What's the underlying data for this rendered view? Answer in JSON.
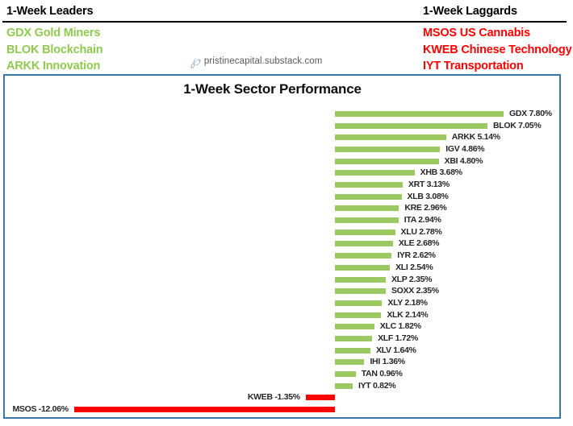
{
  "header": {
    "leaders": {
      "title": "1-Week Leaders",
      "color": "#8fc94f",
      "items": [
        "GDX Gold Miners",
        "BLOK Blockchain",
        "ARKK Innovation"
      ]
    },
    "laggards": {
      "title": "1-Week Laggards",
      "color": "#ff0000",
      "items": [
        "MSOS US Cannabis",
        "KWEB Chinese Technology",
        "IYT Transportation"
      ]
    }
  },
  "watermark": {
    "icon": "script-p-logo",
    "icon_glyph": "℘",
    "text": "pristinecapital.substack.com"
  },
  "chart_data": {
    "type": "bar",
    "orientation": "horizontal",
    "title": "1-Week Sector Performance",
    "categories": [
      "GDX",
      "BLOK",
      "ARKK",
      "IGV",
      "XBI",
      "XHB",
      "XRT",
      "XLB",
      "KRE",
      "ITA",
      "XLU",
      "XLE",
      "IYR",
      "XLI",
      "XLP",
      "SOXX",
      "XLY",
      "XLK",
      "XLC",
      "XLF",
      "XLV",
      "IHI",
      "TAN",
      "IYT",
      "KWEB",
      "MSOS"
    ],
    "values": [
      7.8,
      7.05,
      5.14,
      4.86,
      4.8,
      3.68,
      3.13,
      3.08,
      2.96,
      2.94,
      2.78,
      2.68,
      2.62,
      2.54,
      2.35,
      2.35,
      2.18,
      2.14,
      1.82,
      1.72,
      1.64,
      1.36,
      0.96,
      0.82,
      -1.35,
      -12.06
    ],
    "value_suffix": "%",
    "xlabel": "",
    "ylabel": "",
    "xlim": [
      -15.3,
      10.3
    ],
    "grid": false,
    "legend": false,
    "positive_color": "#9cc861",
    "negative_color": "#ff0000",
    "border_color": "#3878a8",
    "label_color": "#262626"
  }
}
